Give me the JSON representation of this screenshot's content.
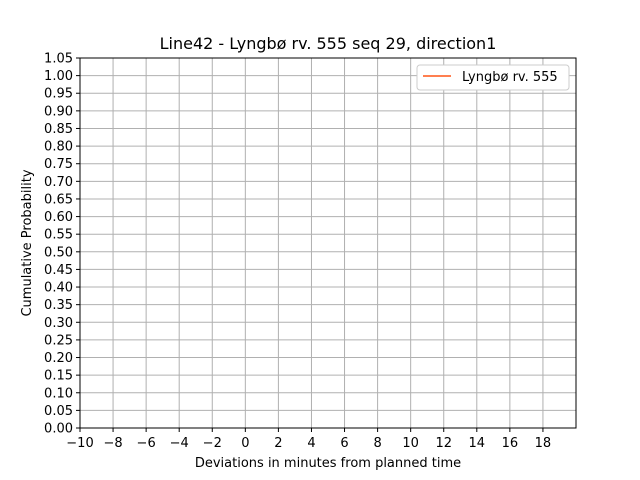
{
  "chart_data": {
    "type": "line",
    "title": "Line42 - Lyngbø rv. 555 seq 29, direction1",
    "xlabel": "Deviations in minutes from planned time",
    "ylabel": "Cumulative Probability",
    "xlim": [
      -10,
      20
    ],
    "ylim": [
      0,
      1.05
    ],
    "xticks": [
      -10,
      -8,
      -6,
      -4,
      -2,
      0,
      2,
      4,
      6,
      8,
      10,
      12,
      14,
      16,
      18
    ],
    "xtick_labels": [
      "−10",
      "−8",
      "−6",
      "−4",
      "−2",
      "0",
      "2",
      "4",
      "6",
      "8",
      "10",
      "12",
      "14",
      "16",
      "18"
    ],
    "yticks": [
      0,
      0.05,
      0.1,
      0.15,
      0.2,
      0.25,
      0.3,
      0.35,
      0.4,
      0.45,
      0.5,
      0.55,
      0.6,
      0.65,
      0.7,
      0.75,
      0.8,
      0.85,
      0.9,
      0.95,
      1.0,
      1.05
    ],
    "ytick_labels": [
      "0.00",
      "0.05",
      "0.10",
      "0.15",
      "0.20",
      "0.25",
      "0.30",
      "0.35",
      "0.40",
      "0.45",
      "0.50",
      "0.55",
      "0.60",
      "0.65",
      "0.70",
      "0.75",
      "0.80",
      "0.85",
      "0.90",
      "0.95",
      "1.00",
      "1.05"
    ],
    "grid": true,
    "legend_position": "top-right",
    "series": [
      {
        "name": "Lyngbø rv. 555",
        "color": "#ff7f50",
        "x": [],
        "y": []
      }
    ]
  }
}
